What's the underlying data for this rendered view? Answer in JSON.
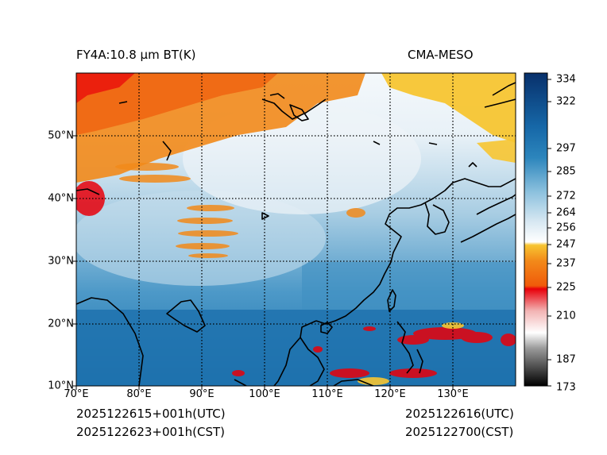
{
  "title": {
    "left": "FY4A:10.8 µm BT(K)",
    "right": "CMA-MESO"
  },
  "footer": {
    "utc_init": "2025122615+001h(UTC)",
    "cst_init": "2025122623+001h(CST)",
    "utc_valid": "2025122616(UTC)",
    "cst_valid": "2025122700(CST)"
  },
  "map": {
    "lon_range": [
      70,
      140
    ],
    "lat_range": [
      10,
      60
    ],
    "lat_labels": [
      "50°N",
      "40°N",
      "30°N",
      "20°N",
      "10°N"
    ],
    "lon_labels": [
      "70°E",
      "80°E",
      "90°E",
      "100°E",
      "110°E",
      "120°E",
      "130°E"
    ]
  },
  "colorbar": {
    "range": [
      173,
      340
    ],
    "labels": [
      "334",
      "322",
      "297",
      "285",
      "272",
      "264",
      "256",
      "247",
      "237",
      "225",
      "210",
      "187",
      "173"
    ],
    "colors": {
      "cold_black": "#000000",
      "grey": "#9a9a9a",
      "white": "#ffffff",
      "red": "#e8000a",
      "orange": "#f28a1a",
      "yellow": "#f7c531",
      "light_blue": "#d4e6f1",
      "mid_blue": "#5aa6d0",
      "deep_blue": "#1667a7",
      "navy": "#08306b"
    }
  }
}
